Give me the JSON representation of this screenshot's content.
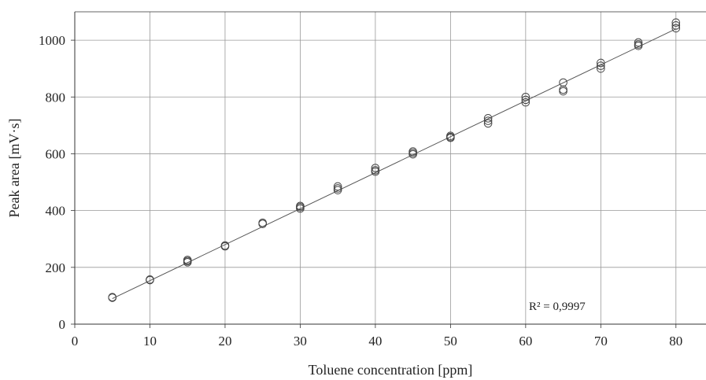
{
  "chart_data": {
    "type": "scatter",
    "xlabel": "Toluene concentration [ppm]",
    "ylabel": "Peak area [mV·s]",
    "xlim": [
      0,
      84
    ],
    "ylim": [
      0,
      1100
    ],
    "xticks": [
      0,
      10,
      20,
      30,
      40,
      50,
      60,
      70,
      80
    ],
    "yticks": [
      0,
      200,
      400,
      600,
      800,
      1000
    ],
    "grid": true,
    "legend": "none",
    "marker": "open-circle",
    "colors": {
      "marker": "#444444",
      "fit_line": "#555555",
      "grid": "#999999",
      "axis": "#333333"
    },
    "points": [
      [
        5,
        93
      ],
      [
        5,
        95
      ],
      [
        10,
        155
      ],
      [
        10,
        157
      ],
      [
        15,
        218
      ],
      [
        15,
        222
      ],
      [
        15,
        226
      ],
      [
        20,
        274
      ],
      [
        20,
        277
      ],
      [
        25,
        353
      ],
      [
        25,
        357
      ],
      [
        30,
        407
      ],
      [
        30,
        412
      ],
      [
        30,
        416
      ],
      [
        35,
        472
      ],
      [
        35,
        478
      ],
      [
        35,
        485
      ],
      [
        40,
        537
      ],
      [
        40,
        542
      ],
      [
        40,
        550
      ],
      [
        45,
        598
      ],
      [
        45,
        603
      ],
      [
        45,
        608
      ],
      [
        50,
        656
      ],
      [
        50,
        659
      ],
      [
        50,
        663
      ],
      [
        55,
        707
      ],
      [
        55,
        716
      ],
      [
        55,
        725
      ],
      [
        60,
        781
      ],
      [
        60,
        790
      ],
      [
        60,
        800
      ],
      [
        65,
        820
      ],
      [
        65,
        826
      ],
      [
        65,
        851
      ],
      [
        70,
        900
      ],
      [
        70,
        910
      ],
      [
        70,
        920
      ],
      [
        75,
        980
      ],
      [
        75,
        985
      ],
      [
        75,
        992
      ],
      [
        80,
        1042
      ],
      [
        80,
        1052
      ],
      [
        80,
        1062
      ]
    ],
    "fit_line": {
      "x": [
        5,
        80
      ],
      "y": [
        90,
        1040
      ]
    },
    "annotation": "R² = 0,9997"
  }
}
